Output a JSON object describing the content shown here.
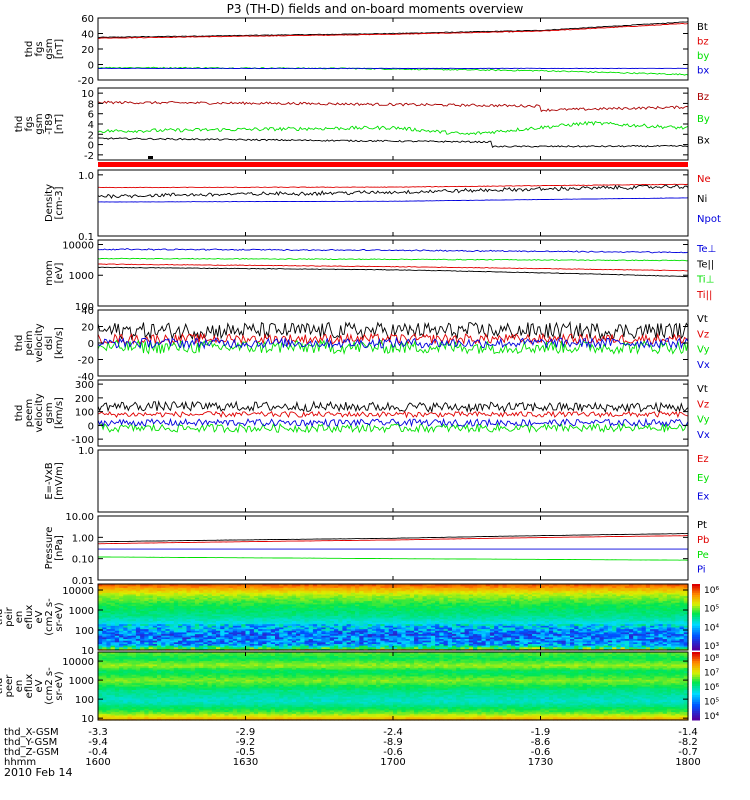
{
  "title": "P3 (TH-D) fields and on-board moments overview",
  "date": "2010 Feb 14",
  "colors": {
    "black": "#000000",
    "red": "#e00000",
    "green": "#00e000",
    "blue": "#0000dd",
    "darkred": "#aa0000"
  },
  "chart_data": [
    {
      "type": "line",
      "ylabel": [
        "thd",
        "fgs",
        "gsm",
        "[nT]"
      ],
      "ylim": [
        -20,
        60
      ],
      "yticks": [
        "60",
        "40",
        "20",
        "0",
        "-20"
      ],
      "ytick_values": [
        60,
        40,
        20,
        0,
        -20
      ],
      "series": [
        {
          "name": "Bt",
          "color": "black",
          "x": [
            1600,
            1700,
            1730,
            1800
          ],
          "y": [
            35,
            40,
            44,
            55
          ],
          "noise": 0.4
        },
        {
          "name": "bz",
          "color": "red",
          "x": [
            1600,
            1700,
            1730,
            1800
          ],
          "y": [
            34,
            39,
            43,
            53
          ],
          "noise": 0.4
        },
        {
          "name": "by",
          "color": "green",
          "x": [
            1600,
            1650,
            1730,
            1800
          ],
          "y": [
            -4,
            -5,
            -8,
            -13
          ],
          "noise": 0.8
        },
        {
          "name": "bx",
          "color": "blue",
          "x": [
            1600,
            1700,
            1800
          ],
          "y": [
            -5,
            -5,
            -5
          ],
          "noise": 0.2
        }
      ]
    },
    {
      "type": "line",
      "ylabel": [
        "thd",
        "fgs",
        "gsm",
        "-T89",
        "[nT]"
      ],
      "ylim": [
        -3,
        11
      ],
      "yticks": [
        "10",
        "8",
        "6",
        "4",
        "2",
        "0",
        "-2"
      ],
      "ytick_values": [
        10,
        8,
        6,
        4,
        2,
        0,
        -2
      ],
      "series": [
        {
          "name": "Bz",
          "color": "darkred",
          "x": [
            1600,
            1640,
            1690,
            1720,
            1760,
            1800
          ],
          "y": [
            8.2,
            8,
            7.5,
            6.5,
            7.3,
            5.8
          ],
          "noise": 0.25
        },
        {
          "name": "By",
          "color": "green",
          "x": [
            1600,
            1660,
            1700,
            1715,
            1740,
            1800
          ],
          "y": [
            2.6,
            3.3,
            3.3,
            2.0,
            4.2,
            3.2
          ],
          "noise": 0.35
        },
        {
          "name": "Bx",
          "color": "black",
          "x": [
            1600,
            1680,
            1715,
            1800
          ],
          "y": [
            1.2,
            0.5,
            -0.4,
            -0.3
          ],
          "noise": 0.15
        }
      ]
    },
    {
      "type": "line",
      "ylabel": [
        "Density",
        "[cm-3]"
      ],
      "ylim": [
        0.1,
        1.2
      ],
      "log": true,
      "yticks": [
        "1.0",
        "0.1"
      ],
      "ytick_values": [
        1.0,
        0.1
      ],
      "series": [
        {
          "name": "Ne",
          "color": "red",
          "x": [
            1600,
            1700,
            1800
          ],
          "y": [
            0.62,
            0.63,
            0.7
          ],
          "noise": 0.01
        },
        {
          "name": "Ni",
          "color": "black",
          "x": [
            1600,
            1700,
            1800
          ],
          "y": [
            0.45,
            0.52,
            0.65
          ],
          "noise": 0.06
        },
        {
          "name": "Npot",
          "color": "blue",
          "x": [
            1600,
            1700,
            1800
          ],
          "y": [
            0.36,
            0.37,
            0.42
          ],
          "noise": 0.005
        }
      ]
    },
    {
      "type": "line",
      "ylabel": [
        "mom",
        "[eV]"
      ],
      "ylim": [
        100,
        14000
      ],
      "log": true,
      "yticks": [
        "10000",
        "1000",
        "100"
      ],
      "ytick_values": [
        10000,
        1000,
        100
      ],
      "series": [
        {
          "name": "Te⊥",
          "color": "blue",
          "x": [
            1600,
            1700,
            1800
          ],
          "y": [
            7000,
            6500,
            5500
          ],
          "noise": 0.04
        },
        {
          "name": "Te||",
          "color": "black",
          "x": [
            1600,
            1700,
            1800
          ],
          "y": [
            1800,
            1500,
            900
          ],
          "noise": 0.02
        },
        {
          "name": "Ti⊥",
          "color": "green",
          "x": [
            1600,
            1700,
            1800
          ],
          "y": [
            3500,
            3300,
            3000
          ],
          "noise": 0.03
        },
        {
          "name": "Ti||",
          "color": "red",
          "x": [
            1600,
            1700,
            1800
          ],
          "y": [
            2300,
            1900,
            1400
          ],
          "noise": 0.02
        }
      ],
      "legend": [
        "Te⊥",
        "Te||",
        "Ti⊥",
        "Ti||"
      ]
    },
    {
      "type": "line",
      "ylabel": [
        "thd",
        "peim",
        "velocity",
        "dsl",
        "[km/s]"
      ],
      "ylim": [
        -40,
        40
      ],
      "yticks": [
        "40",
        "20",
        "0",
        "-20",
        "-40"
      ],
      "ytick_values": [
        40,
        20,
        0,
        -20,
        -40
      ],
      "series": [
        {
          "name": "Vt",
          "color": "black",
          "x": [
            1600,
            1800
          ],
          "y": [
            15,
            15
          ],
          "noise": 10
        },
        {
          "name": "Vz",
          "color": "red",
          "x": [
            1600,
            1800
          ],
          "y": [
            5,
            5
          ],
          "noise": 6
        },
        {
          "name": "Vy",
          "color": "green",
          "x": [
            1600,
            1800
          ],
          "y": [
            -5,
            -5
          ],
          "noise": 8
        },
        {
          "name": "Vx",
          "color": "blue",
          "x": [
            1600,
            1800
          ],
          "y": [
            0,
            0
          ],
          "noise": 6
        }
      ]
    },
    {
      "type": "line",
      "ylabel": [
        "thd",
        "peem",
        "velocity",
        "gsm",
        "[km/s]"
      ],
      "ylim": [
        -150,
        330
      ],
      "yticks": [
        "300",
        "200",
        "100",
        "0",
        "-100"
      ],
      "ytick_values": [
        300,
        200,
        100,
        0,
        -100
      ],
      "series": [
        {
          "name": "Vt",
          "color": "black",
          "x": [
            1600,
            1800
          ],
          "y": [
            140,
            130
          ],
          "noise": 35
        },
        {
          "name": "Vz",
          "color": "red",
          "x": [
            1600,
            1800
          ],
          "y": [
            80,
            80
          ],
          "noise": 20
        },
        {
          "name": "Vy",
          "color": "green",
          "x": [
            1600,
            1800
          ],
          "y": [
            -20,
            -20
          ],
          "noise": 30
        },
        {
          "name": "Vx",
          "color": "blue",
          "x": [
            1600,
            1800
          ],
          "y": [
            20,
            20
          ],
          "noise": 25
        }
      ]
    },
    {
      "type": "line",
      "ylabel": [
        "E=-VxB",
        "[mV/m]"
      ],
      "ylim": [
        -1,
        1
      ],
      "yticks": [
        "1.0"
      ],
      "ytick_values": [
        1.0
      ],
      "series": [
        {
          "name": "Ez",
          "color": "red",
          "x": [],
          "y": []
        },
        {
          "name": "Ey",
          "color": "green",
          "x": [],
          "y": []
        },
        {
          "name": "Ex",
          "color": "blue",
          "x": [],
          "y": []
        }
      ]
    },
    {
      "type": "line",
      "ylabel": [
        "Pressure",
        "[nPa]"
      ],
      "ylim": [
        0.01,
        10
      ],
      "log": true,
      "yticks": [
        "10.00",
        "1.00",
        "0.10",
        "0.01"
      ],
      "ytick_values": [
        10,
        1,
        0.1,
        0.01
      ],
      "series": [
        {
          "name": "Pt",
          "color": "black",
          "x": [
            1600,
            1700,
            1800
          ],
          "y": [
            0.62,
            0.9,
            1.5
          ],
          "noise": 0.01
        },
        {
          "name": "Pb",
          "color": "red",
          "x": [
            1600,
            1700,
            1800
          ],
          "y": [
            0.5,
            0.75,
            1.2
          ],
          "noise": 0.005
        },
        {
          "name": "Pe",
          "color": "green",
          "x": [
            1600,
            1700,
            1800
          ],
          "y": [
            0.12,
            0.1,
            0.085
          ],
          "noise": 0.005
        },
        {
          "name": "Pi",
          "color": "blue",
          "x": [
            1600,
            1700,
            1800
          ],
          "y": [
            0.28,
            0.28,
            0.28
          ],
          "noise": 0.002
        }
      ]
    },
    {
      "type": "heatmap",
      "ylabel": [
        "thd",
        "peir",
        "en",
        "eflux",
        "eV",
        "(cm2 s-",
        "sr-eV)"
      ],
      "ylim": [
        10,
        20000
      ],
      "log": true,
      "yticks": [
        "10000",
        "1000",
        "100",
        "10"
      ],
      "ytick_values": [
        10000,
        1000,
        100,
        10
      ],
      "colorbar": [
        "10⁶",
        "10⁵",
        "10⁴",
        "10³"
      ],
      "profile": [
        {
          "e": 20000,
          "v": 6.3
        },
        {
          "e": 12000,
          "v": 5.8
        },
        {
          "e": 6000,
          "v": 5.3
        },
        {
          "e": 2000,
          "v": 4.9
        },
        {
          "e": 500,
          "v": 4.6
        },
        {
          "e": 200,
          "v": 4.2
        },
        {
          "e": 60,
          "v": 3.6
        },
        {
          "e": 20,
          "v": 3.8
        },
        {
          "e": 10,
          "v": 5.6
        }
      ],
      "vrange": [
        2.7,
        6.6
      ]
    },
    {
      "type": "heatmap",
      "ylabel": [
        "thd",
        "peer",
        "en",
        "eflux",
        "eV",
        "(cm2 s-",
        "sr-eV)"
      ],
      "ylim": [
        8,
        30000
      ],
      "log": true,
      "yticks": [
        "10000",
        "1000",
        "100",
        "10"
      ],
      "ytick_values": [
        10000,
        1000,
        100,
        10
      ],
      "colorbar": [
        "10⁸",
        "10⁷",
        "10⁶",
        "10⁵",
        "10⁴"
      ],
      "profile": [
        {
          "e": 30000,
          "v": 6.6
        },
        {
          "e": 15000,
          "v": 6.3
        },
        {
          "e": 6000,
          "v": 6.8
        },
        {
          "e": 3000,
          "v": 6.2
        },
        {
          "e": 1000,
          "v": 6.7
        },
        {
          "e": 300,
          "v": 6.1
        },
        {
          "e": 80,
          "v": 5.8
        },
        {
          "e": 20,
          "v": 6.6
        },
        {
          "e": 8,
          "v": 7.6
        }
      ],
      "vrange": [
        3.9,
        8.3
      ]
    }
  ],
  "xaxis": {
    "ticks": [
      1600,
      1630,
      1700,
      1730,
      1800
    ],
    "rows": [
      {
        "label": "thd_X-GSM",
        "values": [
          "-3.3",
          "-2.9",
          "-2.4",
          "-1.9",
          "-1.4"
        ]
      },
      {
        "label": "thd_Y-GSM",
        "values": [
          "-9.4",
          "-9.2",
          "-8.9",
          "-8.6",
          "-8.2"
        ]
      },
      {
        "label": "thd_Z-GSM",
        "values": [
          "-0.4",
          "-0.5",
          "-0.6",
          "-0.6",
          "-0.7"
        ]
      },
      {
        "label": "hhmm",
        "values": [
          "1600",
          "1630",
          "1700",
          "1730",
          "1800"
        ]
      }
    ]
  }
}
